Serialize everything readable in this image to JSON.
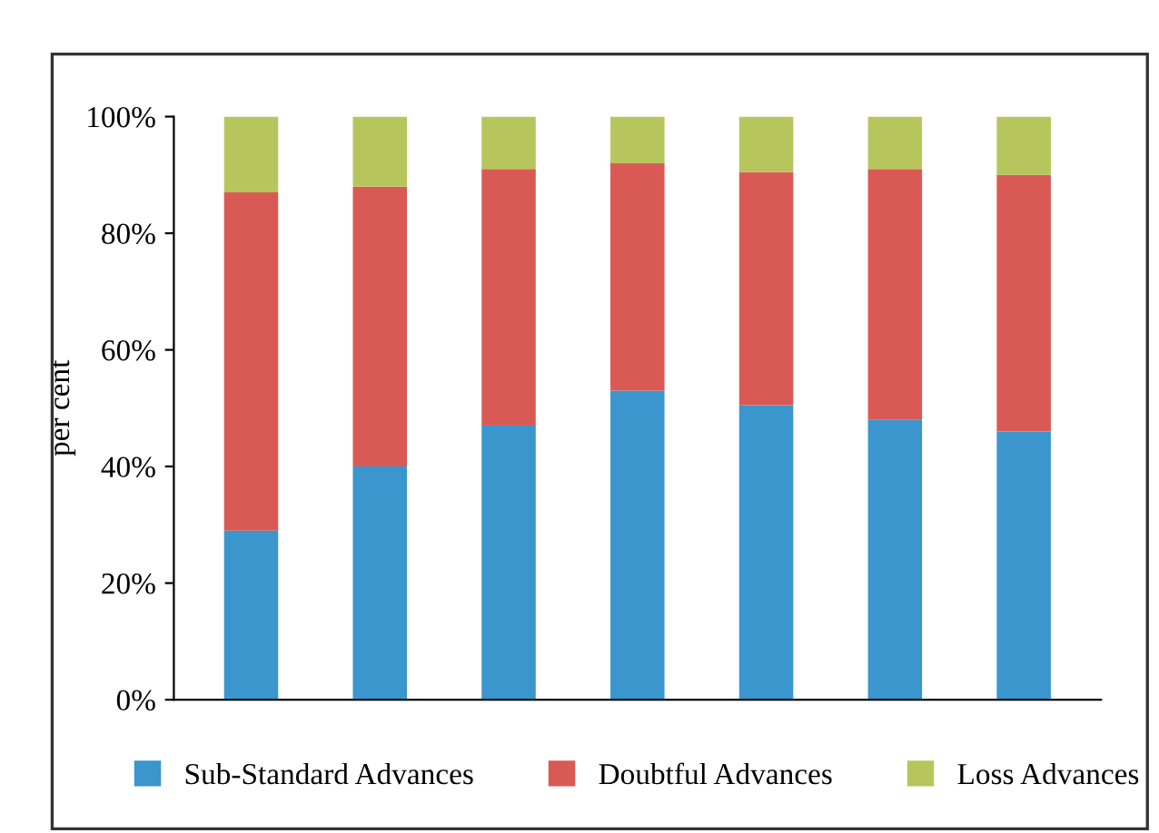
{
  "chart_data": {
    "type": "bar",
    "stacked": true,
    "ylabel": "per cent",
    "categories": [
      null,
      null,
      null,
      null,
      null,
      null,
      null
    ],
    "series": [
      {
        "name": "Sub-Standard Advances",
        "color": "#3a96cd",
        "values": [
          29,
          40,
          47,
          53,
          50.5,
          48,
          46
        ]
      },
      {
        "name": "Doubtful Advances",
        "color": "#d95a55",
        "values": [
          58,
          48,
          44,
          39,
          40,
          43,
          44
        ]
      },
      {
        "name": "Loss Advances",
        "color": "#b7c65c",
        "values": [
          13,
          12,
          9,
          8,
          9.5,
          9,
          10
        ]
      }
    ],
    "ylim": [
      0,
      100
    ],
    "yticks": [
      {
        "value": 0,
        "label": "0%"
      },
      {
        "value": 20,
        "label": "20%"
      },
      {
        "value": 40,
        "label": "40%"
      },
      {
        "value": 60,
        "label": "60%"
      },
      {
        "value": 80,
        "label": "80%"
      },
      {
        "value": 100,
        "label": "100%"
      }
    ],
    "grid": false,
    "legend": "bottom"
  }
}
